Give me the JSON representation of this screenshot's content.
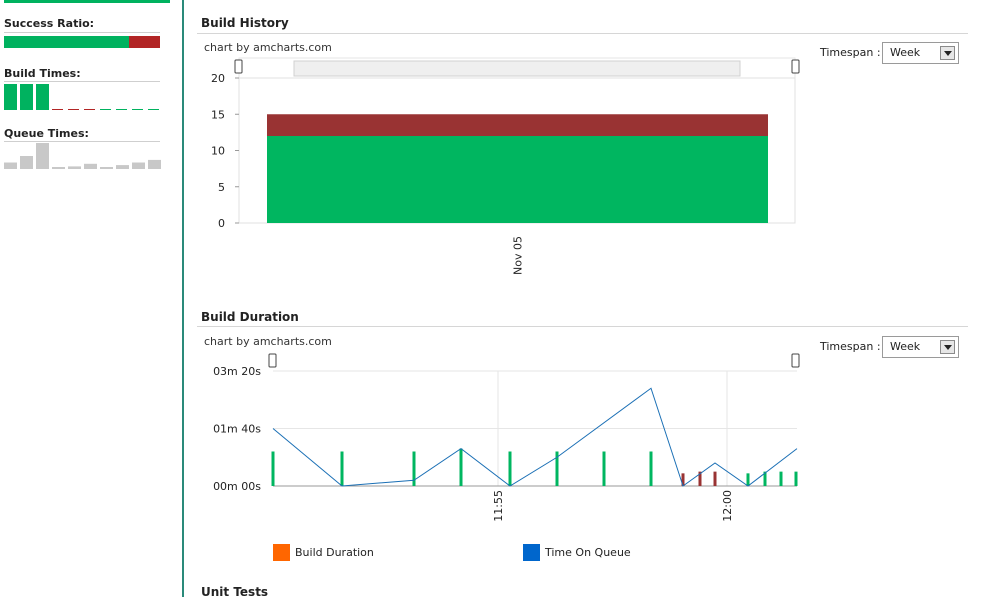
{
  "sidebar": {
    "success_ratio_label": "Success Ratio:",
    "success_ratio": {
      "success_fraction": 0.8,
      "success_color": "#00b25f",
      "fail_color": "#b22525"
    },
    "build_times_label": "Build Times:",
    "build_times_bars": [
      1.0,
      1.0,
      1.0,
      0,
      0,
      0,
      0,
      0,
      0,
      0
    ],
    "queue_times_label": "Queue Times:",
    "queue_times_bars": [
      0.25,
      0.5,
      1.0,
      0.05,
      0.1,
      0.2,
      0.05,
      0.15,
      0.25,
      0.35
    ]
  },
  "build_history": {
    "title": "Build History",
    "credit": "chart by amcharts.com",
    "timespan_label": "Timespan :",
    "timespan_value": "Week",
    "chart_data": {
      "type": "bar",
      "stacked": true,
      "categories": [
        "Nov 05"
      ],
      "series": [
        {
          "values": [
            12
          ],
          "color": "#00b660"
        },
        {
          "values": [
            3
          ],
          "color": "#993333"
        }
      ],
      "y_ticks": [
        "0",
        "5",
        "10",
        "15",
        "20"
      ],
      "ylim": [
        0,
        20
      ]
    }
  },
  "build_duration": {
    "title": "Build Duration",
    "credit": "chart by amcharts.com",
    "timespan_label": "Timespan :",
    "timespan_value": "Week",
    "chart_data": {
      "type": "line",
      "y_ticks": [
        "00m 00s",
        "01m 40s",
        "03m 20s"
      ],
      "ylim_seconds": [
        0,
        200
      ],
      "x_ticks": [
        "11:55",
        "12:00"
      ],
      "legend": [
        {
          "name": "Build Duration",
          "color": "#ff6600"
        },
        {
          "name": "Time On Queue",
          "color": "#0066cc"
        }
      ],
      "line_color": "#1a6fb5",
      "queue_line_seconds": [
        100,
        0,
        10,
        65,
        0,
        50,
        170,
        0,
        40,
        0,
        65
      ],
      "duration_sticks": [
        {
          "value": 60,
          "status": "success"
        },
        {
          "value": 60,
          "status": "success"
        },
        {
          "value": 60,
          "status": "success"
        },
        {
          "value": 65,
          "status": "success"
        },
        {
          "value": 60,
          "status": "success"
        },
        {
          "value": 60,
          "status": "success"
        },
        {
          "value": 60,
          "status": "success"
        },
        {
          "value": 60,
          "status": "success"
        },
        {
          "value": 22,
          "status": "fail"
        },
        {
          "value": 25,
          "status": "fail"
        },
        {
          "value": 25,
          "status": "fail"
        },
        {
          "value": 22,
          "status": "success"
        },
        {
          "value": 25,
          "status": "success"
        },
        {
          "value": 25,
          "status": "success"
        },
        {
          "value": 25,
          "status": "success"
        }
      ],
      "success_color": "#00b660",
      "fail_color": "#993333"
    }
  },
  "unit_tests": {
    "title": "Unit Tests"
  }
}
